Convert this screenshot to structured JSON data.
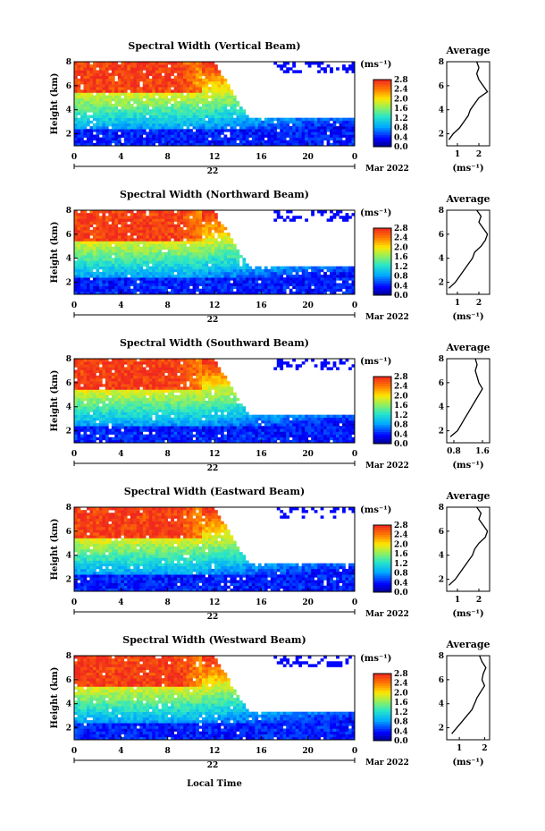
{
  "figure": {
    "xlabel": "Local Time",
    "ylabel": "Height (km)",
    "date_label": "Mar 2022",
    "day_label": "22",
    "colorbar_unit": "(ms⁻¹)",
    "profile_title": "Average",
    "profile_unit": "(ms⁻¹)"
  },
  "chart_data": [
    {
      "type": "heatmap",
      "title": "Spectral Width (Vertical Beam)",
      "x_ticks": [
        "0",
        "4",
        "8",
        "12",
        "16",
        "20",
        "0"
      ],
      "y_ticks": [
        "2",
        "4",
        "6",
        "8"
      ],
      "xlim": [
        0,
        24
      ],
      "ylim": [
        1,
        8
      ],
      "colorbar_ticks": [
        "0.0",
        "0.4",
        "0.8",
        "1.2",
        "1.6",
        "2.0",
        "2.4",
        "2.8"
      ],
      "colorbar_range": [
        0,
        2.8
      ],
      "profile": {
        "x_ticks": [
          "1",
          "2"
        ],
        "xlim": [
          0.5,
          2.5
        ],
        "heights": [
          1.5,
          2.0,
          2.5,
          3.0,
          3.5,
          4.0,
          4.5,
          5.0,
          5.5,
          6.0,
          6.5,
          7.0,
          7.5,
          8.0
        ],
        "values": [
          0.6,
          0.8,
          1.1,
          1.3,
          1.5,
          1.6,
          1.8,
          2.0,
          2.4,
          2.2,
          2.0,
          1.9,
          2.0,
          1.9
        ]
      }
    },
    {
      "type": "heatmap",
      "title": "Spectral Width (Northward Beam)",
      "x_ticks": [
        "0",
        "4",
        "8",
        "12",
        "16",
        "20",
        "0"
      ],
      "y_ticks": [
        "2",
        "4",
        "6",
        "8"
      ],
      "xlim": [
        0,
        24
      ],
      "ylim": [
        1,
        8
      ],
      "colorbar_ticks": [
        "0.0",
        "0.4",
        "0.8",
        "1.2",
        "1.6",
        "2.0",
        "2.4",
        "2.8"
      ],
      "colorbar_range": [
        0,
        2.8
      ],
      "profile": {
        "x_ticks": [
          "1",
          "2"
        ],
        "xlim": [
          0.5,
          2.5
        ],
        "heights": [
          1.5,
          2.0,
          2.5,
          3.0,
          3.5,
          4.0,
          4.5,
          5.0,
          5.5,
          6.0,
          6.5,
          7.0,
          7.5,
          8.0
        ],
        "values": [
          0.6,
          0.9,
          1.1,
          1.3,
          1.5,
          1.7,
          1.8,
          2.1,
          2.3,
          2.4,
          2.2,
          2.0,
          2.1,
          1.9
        ]
      }
    },
    {
      "type": "heatmap",
      "title": "Spectral Width (Southward Beam)",
      "x_ticks": [
        "0",
        "4",
        "8",
        "12",
        "16",
        "20",
        "0"
      ],
      "y_ticks": [
        "2",
        "4",
        "6",
        "8"
      ],
      "xlim": [
        0,
        24
      ],
      "ylim": [
        1,
        8
      ],
      "colorbar_ticks": [
        "0.0",
        "0.4",
        "0.8",
        "1.2",
        "1.6",
        "2.0",
        "2.4",
        "2.8"
      ],
      "colorbar_range": [
        0,
        2.8
      ],
      "profile": {
        "x_ticks": [
          "0.8",
          "1.6"
        ],
        "xlim": [
          0.6,
          1.8
        ],
        "heights": [
          1.5,
          2.0,
          2.5,
          3.0,
          3.5,
          4.0,
          4.5,
          5.0,
          5.5,
          6.0,
          6.5,
          7.0,
          7.5,
          8.0
        ],
        "values": [
          0.7,
          0.9,
          1.0,
          1.1,
          1.2,
          1.3,
          1.4,
          1.5,
          1.6,
          1.5,
          1.45,
          1.4,
          1.45,
          1.4
        ]
      }
    },
    {
      "type": "heatmap",
      "title": "Spectral Width (Eastward Beam)",
      "x_ticks": [
        "0",
        "4",
        "8",
        "12",
        "16",
        "20",
        "0"
      ],
      "y_ticks": [
        "2",
        "4",
        "6",
        "8"
      ],
      "xlim": [
        0,
        24
      ],
      "ylim": [
        1,
        8
      ],
      "colorbar_ticks": [
        "0.0",
        "0.4",
        "0.8",
        "1.2",
        "1.6",
        "2.0",
        "2.4",
        "2.8"
      ],
      "colorbar_range": [
        0,
        2.8
      ],
      "profile": {
        "x_ticks": [
          "1",
          "2"
        ],
        "xlim": [
          0.5,
          2.5
        ],
        "heights": [
          1.5,
          2.0,
          2.5,
          3.0,
          3.5,
          4.0,
          4.5,
          5.0,
          5.5,
          6.0,
          6.5,
          7.0,
          7.5,
          8.0
        ],
        "values": [
          0.6,
          0.9,
          1.1,
          1.3,
          1.5,
          1.7,
          1.8,
          2.0,
          2.3,
          2.4,
          2.2,
          2.0,
          2.1,
          1.9
        ]
      }
    },
    {
      "type": "heatmap",
      "title": "Spectral Width (Westward Beam)",
      "x_ticks": [
        "0",
        "4",
        "8",
        "12",
        "16",
        "20",
        "0"
      ],
      "y_ticks": [
        "2",
        "4",
        "6",
        "8"
      ],
      "xlim": [
        0,
        24
      ],
      "ylim": [
        1,
        8
      ],
      "colorbar_ticks": [
        "0.0",
        "0.4",
        "0.8",
        "1.2",
        "1.6",
        "2.0",
        "2.4",
        "2.8"
      ],
      "colorbar_range": [
        0,
        2.8
      ],
      "profile": {
        "x_ticks": [
          "1",
          "2"
        ],
        "xlim": [
          0.5,
          2.2
        ],
        "heights": [
          1.5,
          2.0,
          2.5,
          3.0,
          3.5,
          4.0,
          4.5,
          5.0,
          5.5,
          6.0,
          6.5,
          7.0,
          7.5,
          8.0
        ],
        "values": [
          0.7,
          0.9,
          1.1,
          1.3,
          1.5,
          1.6,
          1.7,
          1.85,
          2.0,
          1.9,
          1.95,
          2.05,
          1.9,
          1.8
        ]
      }
    }
  ]
}
